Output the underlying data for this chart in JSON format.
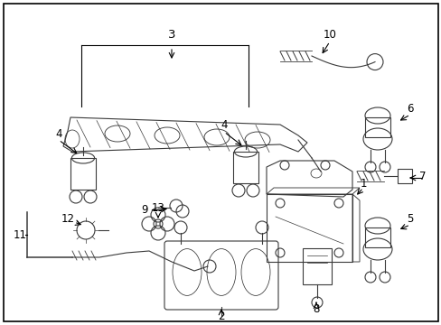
{
  "background_color": "#ffffff",
  "border_color": "#000000",
  "line_color": "#3a3a3a",
  "text_color": "#000000",
  "figsize": [
    4.89,
    3.6
  ],
  "dpi": 100,
  "component_lw": 0.8,
  "label_fs": 8.5
}
